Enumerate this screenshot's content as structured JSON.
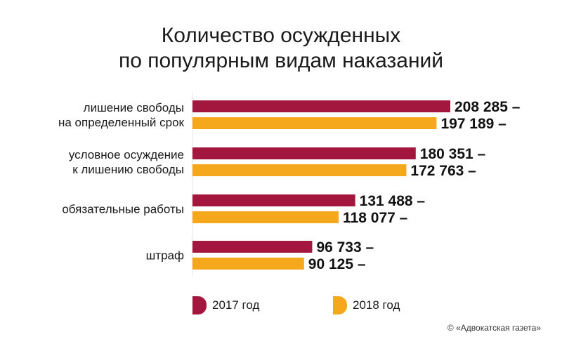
{
  "chart_data": {
    "type": "bar",
    "orientation": "horizontal",
    "title_lines": [
      "Количество осужденных",
      "по популярным видам наказаний"
    ],
    "categories": [
      [
        "лишение свободы",
        "на определенный срок"
      ],
      [
        "условное осуждение",
        "к лишению свободы"
      ],
      [
        "обязательные работы"
      ],
      [
        "штраф"
      ]
    ],
    "series": [
      {
        "name": "2017 год",
        "color": "#a3173f",
        "values": [
          208285,
          180351,
          131488,
          96733
        ],
        "labels": [
          "208 285 –",
          "180 351 –",
          "131 488 –",
          "96 733 –"
        ]
      },
      {
        "name": "2018 год",
        "color": "#f5a81c",
        "values": [
          197189,
          172763,
          118077,
          90125
        ],
        "labels": [
          "197 189 –",
          "172 763 –",
          "118 077 –",
          "90 125 –"
        ]
      }
    ],
    "xlim": [
      0,
      208285
    ],
    "grid": false,
    "legend_position": "bottom"
  },
  "copyright": "© «Адвокатская газета»"
}
